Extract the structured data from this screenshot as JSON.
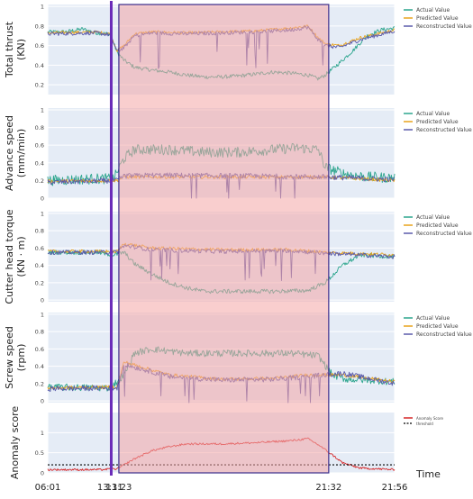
{
  "chart_data": [
    {
      "type": "line",
      "ylabel": "Total thrust\n(KN)",
      "yticks": [
        "0.2",
        "0.4",
        "0.6",
        "0.8",
        "1"
      ],
      "ylim": [
        0.1,
        1.02
      ],
      "legend": [
        "Actual Value",
        "Predicted Value",
        "Reconstructed Value"
      ],
      "legend_position": "right",
      "series": [
        {
          "name": "Actual Value",
          "color": "#2ca58d",
          "profile": [
            [
              0,
              0.74
            ],
            [
              0.05,
              0.74
            ],
            [
              0.1,
              0.77
            ],
            [
              0.14,
              0.73
            ],
            [
              0.18,
              0.72
            ],
            [
              0.2,
              0.53
            ],
            [
              0.22,
              0.45
            ],
            [
              0.25,
              0.38
            ],
            [
              0.3,
              0.35
            ],
            [
              0.35,
              0.33
            ],
            [
              0.4,
              0.3
            ],
            [
              0.45,
              0.28
            ],
            [
              0.5,
              0.28
            ],
            [
              0.55,
              0.29
            ],
            [
              0.6,
              0.31
            ],
            [
              0.65,
              0.33
            ],
            [
              0.7,
              0.32
            ],
            [
              0.75,
              0.3
            ],
            [
              0.78,
              0.26
            ],
            [
              0.8,
              0.3
            ],
            [
              0.84,
              0.42
            ],
            [
              0.88,
              0.55
            ],
            [
              0.92,
              0.7
            ],
            [
              0.96,
              0.76
            ],
            [
              1,
              0.78
            ]
          ],
          "noise": 0.02
        },
        {
          "name": "Predicted Value",
          "color": "#e8a31c",
          "profile": [
            [
              0,
              0.73
            ],
            [
              0.14,
              0.74
            ],
            [
              0.18,
              0.72
            ],
            [
              0.2,
              0.55
            ],
            [
              0.22,
              0.6
            ],
            [
              0.25,
              0.72
            ],
            [
              0.3,
              0.74
            ],
            [
              0.4,
              0.73
            ],
            [
              0.5,
              0.74
            ],
            [
              0.6,
              0.75
            ],
            [
              0.7,
              0.78
            ],
            [
              0.75,
              0.8
            ],
            [
              0.78,
              0.68
            ],
            [
              0.8,
              0.62
            ],
            [
              0.84,
              0.6
            ],
            [
              0.9,
              0.68
            ],
            [
              1,
              0.76
            ]
          ],
          "noise": 0.015
        },
        {
          "name": "Reconstructed Value",
          "color": "#5a5aaa",
          "profile": [
            [
              0,
              0.72
            ],
            [
              0.14,
              0.73
            ],
            [
              0.18,
              0.71
            ],
            [
              0.2,
              0.54
            ],
            [
              0.22,
              0.58
            ],
            [
              0.25,
              0.7
            ],
            [
              0.3,
              0.73
            ],
            [
              0.4,
              0.72
            ],
            [
              0.5,
              0.73
            ],
            [
              0.6,
              0.74
            ],
            [
              0.7,
              0.76
            ],
            [
              0.75,
              0.79
            ],
            [
              0.78,
              0.66
            ],
            [
              0.8,
              0.6
            ],
            [
              0.84,
              0.58
            ],
            [
              0.9,
              0.66
            ],
            [
              1,
              0.75
            ]
          ],
          "noise": 0.02,
          "spikes": true
        }
      ]
    },
    {
      "type": "line",
      "ylabel": "Advance speed\n(mm/min)",
      "yticks": [
        "0",
        "0.2",
        "0.4",
        "0.6",
        "0.8",
        "1"
      ],
      "ylim": [
        0,
        1.02
      ],
      "legend": [
        "Actual Value",
        "Predicted Value",
        "Reconstructed Value"
      ],
      "legend_position": "right",
      "series": [
        {
          "name": "Actual Value",
          "color": "#2ca58d",
          "profile": [
            [
              0,
              0.2
            ],
            [
              0.14,
              0.22
            ],
            [
              0.19,
              0.22
            ],
            [
              0.22,
              0.45
            ],
            [
              0.25,
              0.55
            ],
            [
              0.35,
              0.55
            ],
            [
              0.45,
              0.52
            ],
            [
              0.55,
              0.52
            ],
            [
              0.65,
              0.55
            ],
            [
              0.72,
              0.57
            ],
            [
              0.78,
              0.55
            ],
            [
              0.8,
              0.35
            ],
            [
              0.85,
              0.28
            ],
            [
              0.92,
              0.24
            ],
            [
              1,
              0.23
            ]
          ],
          "noise": 0.06
        },
        {
          "name": "Predicted Value",
          "color": "#e8a31c",
          "profile": [
            [
              0,
              0.19
            ],
            [
              0.2,
              0.2
            ],
            [
              0.22,
              0.24
            ],
            [
              0.3,
              0.24
            ],
            [
              0.6,
              0.24
            ],
            [
              0.8,
              0.24
            ],
            [
              1,
              0.2
            ]
          ],
          "noise": 0.02
        },
        {
          "name": "Reconstructed Value",
          "color": "#5a5aaa",
          "profile": [
            [
              0,
              0.18
            ],
            [
              0.2,
              0.2
            ],
            [
              0.22,
              0.25
            ],
            [
              0.3,
              0.26
            ],
            [
              0.6,
              0.25
            ],
            [
              0.8,
              0.24
            ],
            [
              1,
              0.21
            ]
          ],
          "noise": 0.03,
          "spikes": true
        }
      ]
    },
    {
      "type": "line",
      "ylabel": "Cutter head torque\n(KN · m)",
      "yticks": [
        "0",
        "0.2",
        "0.4",
        "0.6",
        "0.8",
        "1"
      ],
      "ylim": [
        -0.02,
        1.02
      ],
      "legend": [
        "Actual Value",
        "Predicted Value",
        "Reconstructed Value"
      ],
      "legend_position": "right",
      "series": [
        {
          "name": "Actual Value",
          "color": "#2ca58d",
          "profile": [
            [
              0,
              0.55
            ],
            [
              0.14,
              0.55
            ],
            [
              0.19,
              0.52
            ],
            [
              0.22,
              0.55
            ],
            [
              0.25,
              0.42
            ],
            [
              0.3,
              0.3
            ],
            [
              0.35,
              0.2
            ],
            [
              0.4,
              0.14
            ],
            [
              0.45,
              0.1
            ],
            [
              0.55,
              0.1
            ],
            [
              0.65,
              0.1
            ],
            [
              0.75,
              0.11
            ],
            [
              0.8,
              0.2
            ],
            [
              0.85,
              0.4
            ],
            [
              0.9,
              0.52
            ],
            [
              1,
              0.5
            ]
          ],
          "noise": 0.025
        },
        {
          "name": "Predicted Value",
          "color": "#e8a31c",
          "profile": [
            [
              0,
              0.56
            ],
            [
              0.2,
              0.56
            ],
            [
              0.22,
              0.65
            ],
            [
              0.3,
              0.6
            ],
            [
              0.5,
              0.58
            ],
            [
              0.7,
              0.58
            ],
            [
              0.8,
              0.55
            ],
            [
              1,
              0.52
            ]
          ],
          "noise": 0.02
        },
        {
          "name": "Reconstructed Value",
          "color": "#5a5aaa",
          "profile": [
            [
              0,
              0.55
            ],
            [
              0.2,
              0.55
            ],
            [
              0.22,
              0.63
            ],
            [
              0.3,
              0.58
            ],
            [
              0.5,
              0.56
            ],
            [
              0.7,
              0.57
            ],
            [
              0.8,
              0.54
            ],
            [
              1,
              0.5
            ]
          ],
          "noise": 0.025,
          "spikes": true
        }
      ]
    },
    {
      "type": "line",
      "ylabel": "Screw speed\n(rpm)",
      "yticks": [
        "0",
        "0.2",
        "0.4",
        "0.6",
        "0.8",
        "1"
      ],
      "ylim": [
        -0.02,
        1.02
      ],
      "legend": [
        "Actual Value",
        "Predicted Value",
        "Reconstructed Value"
      ],
      "legend_position": "right",
      "series": [
        {
          "name": "Actual Value",
          "color": "#2ca58d",
          "profile": [
            [
              0,
              0.16
            ],
            [
              0.18,
              0.15
            ],
            [
              0.22,
              0.3
            ],
            [
              0.25,
              0.55
            ],
            [
              0.3,
              0.6
            ],
            [
              0.4,
              0.55
            ],
            [
              0.5,
              0.55
            ],
            [
              0.6,
              0.55
            ],
            [
              0.7,
              0.55
            ],
            [
              0.78,
              0.52
            ],
            [
              0.82,
              0.3
            ],
            [
              0.86,
              0.25
            ],
            [
              0.92,
              0.24
            ],
            [
              1,
              0.22
            ]
          ],
          "noise": 0.04
        },
        {
          "name": "Predicted Value",
          "color": "#e8a31c",
          "profile": [
            [
              0,
              0.15
            ],
            [
              0.2,
              0.16
            ],
            [
              0.22,
              0.45
            ],
            [
              0.28,
              0.38
            ],
            [
              0.35,
              0.3
            ],
            [
              0.5,
              0.25
            ],
            [
              0.65,
              0.26
            ],
            [
              0.75,
              0.3
            ],
            [
              0.8,
              0.3
            ],
            [
              0.85,
              0.3
            ],
            [
              1,
              0.22
            ]
          ],
          "noise": 0.02
        },
        {
          "name": "Reconstructed Value",
          "color": "#5a5aaa",
          "profile": [
            [
              0,
              0.14
            ],
            [
              0.2,
              0.15
            ],
            [
              0.22,
              0.42
            ],
            [
              0.28,
              0.36
            ],
            [
              0.35,
              0.28
            ],
            [
              0.5,
              0.24
            ],
            [
              0.65,
              0.25
            ],
            [
              0.75,
              0.28
            ],
            [
              0.8,
              0.3
            ],
            [
              0.85,
              0.32
            ],
            [
              1,
              0.2
            ]
          ],
          "noise": 0.03,
          "spikes": true
        }
      ]
    },
    {
      "type": "line",
      "ylabel": "Anomaly score",
      "yticks": [
        "0",
        "0.5",
        "1"
      ],
      "ylim": [
        0,
        1.5
      ],
      "legend": [
        "Anomaly Score",
        "threshold"
      ],
      "legend_position": "top-right",
      "threshold": 0.2,
      "series": [
        {
          "name": "Anomaly Score",
          "color": "#d62728",
          "profile": [
            [
              0,
              0.08
            ],
            [
              0.15,
              0.08
            ],
            [
              0.2,
              0.1
            ],
            [
              0.22,
              0.2
            ],
            [
              0.25,
              0.35
            ],
            [
              0.3,
              0.55
            ],
            [
              0.35,
              0.65
            ],
            [
              0.4,
              0.72
            ],
            [
              0.5,
              0.72
            ],
            [
              0.6,
              0.75
            ],
            [
              0.7,
              0.8
            ],
            [
              0.75,
              0.85
            ],
            [
              0.78,
              0.7
            ],
            [
              0.82,
              0.45
            ],
            [
              0.85,
              0.25
            ],
            [
              0.9,
              0.12
            ],
            [
              1,
              0.08
            ]
          ],
          "noise": 0.025
        }
      ]
    }
  ],
  "x_axis": {
    "xlabel": "Time",
    "ticks": [
      {
        "label": "06:01",
        "t": 0.0
      },
      {
        "label": "13:11",
        "t": 0.18
      },
      {
        "label": "13:23",
        "t": 0.205
      },
      {
        "label": "21:32",
        "t": 0.81
      },
      {
        "label": "21:56",
        "t": 1.0
      }
    ]
  },
  "markers": {
    "alarm_time": 0.183,
    "anomaly_region": [
      0.205,
      0.81
    ],
    "alarm_line_color": "#6a2bb8",
    "region_fill": "#f4a6a6",
    "region_border": "#3a2d8c"
  },
  "colors": {
    "plot_bg": "#e5ecf6",
    "grid": "#ffffff"
  }
}
